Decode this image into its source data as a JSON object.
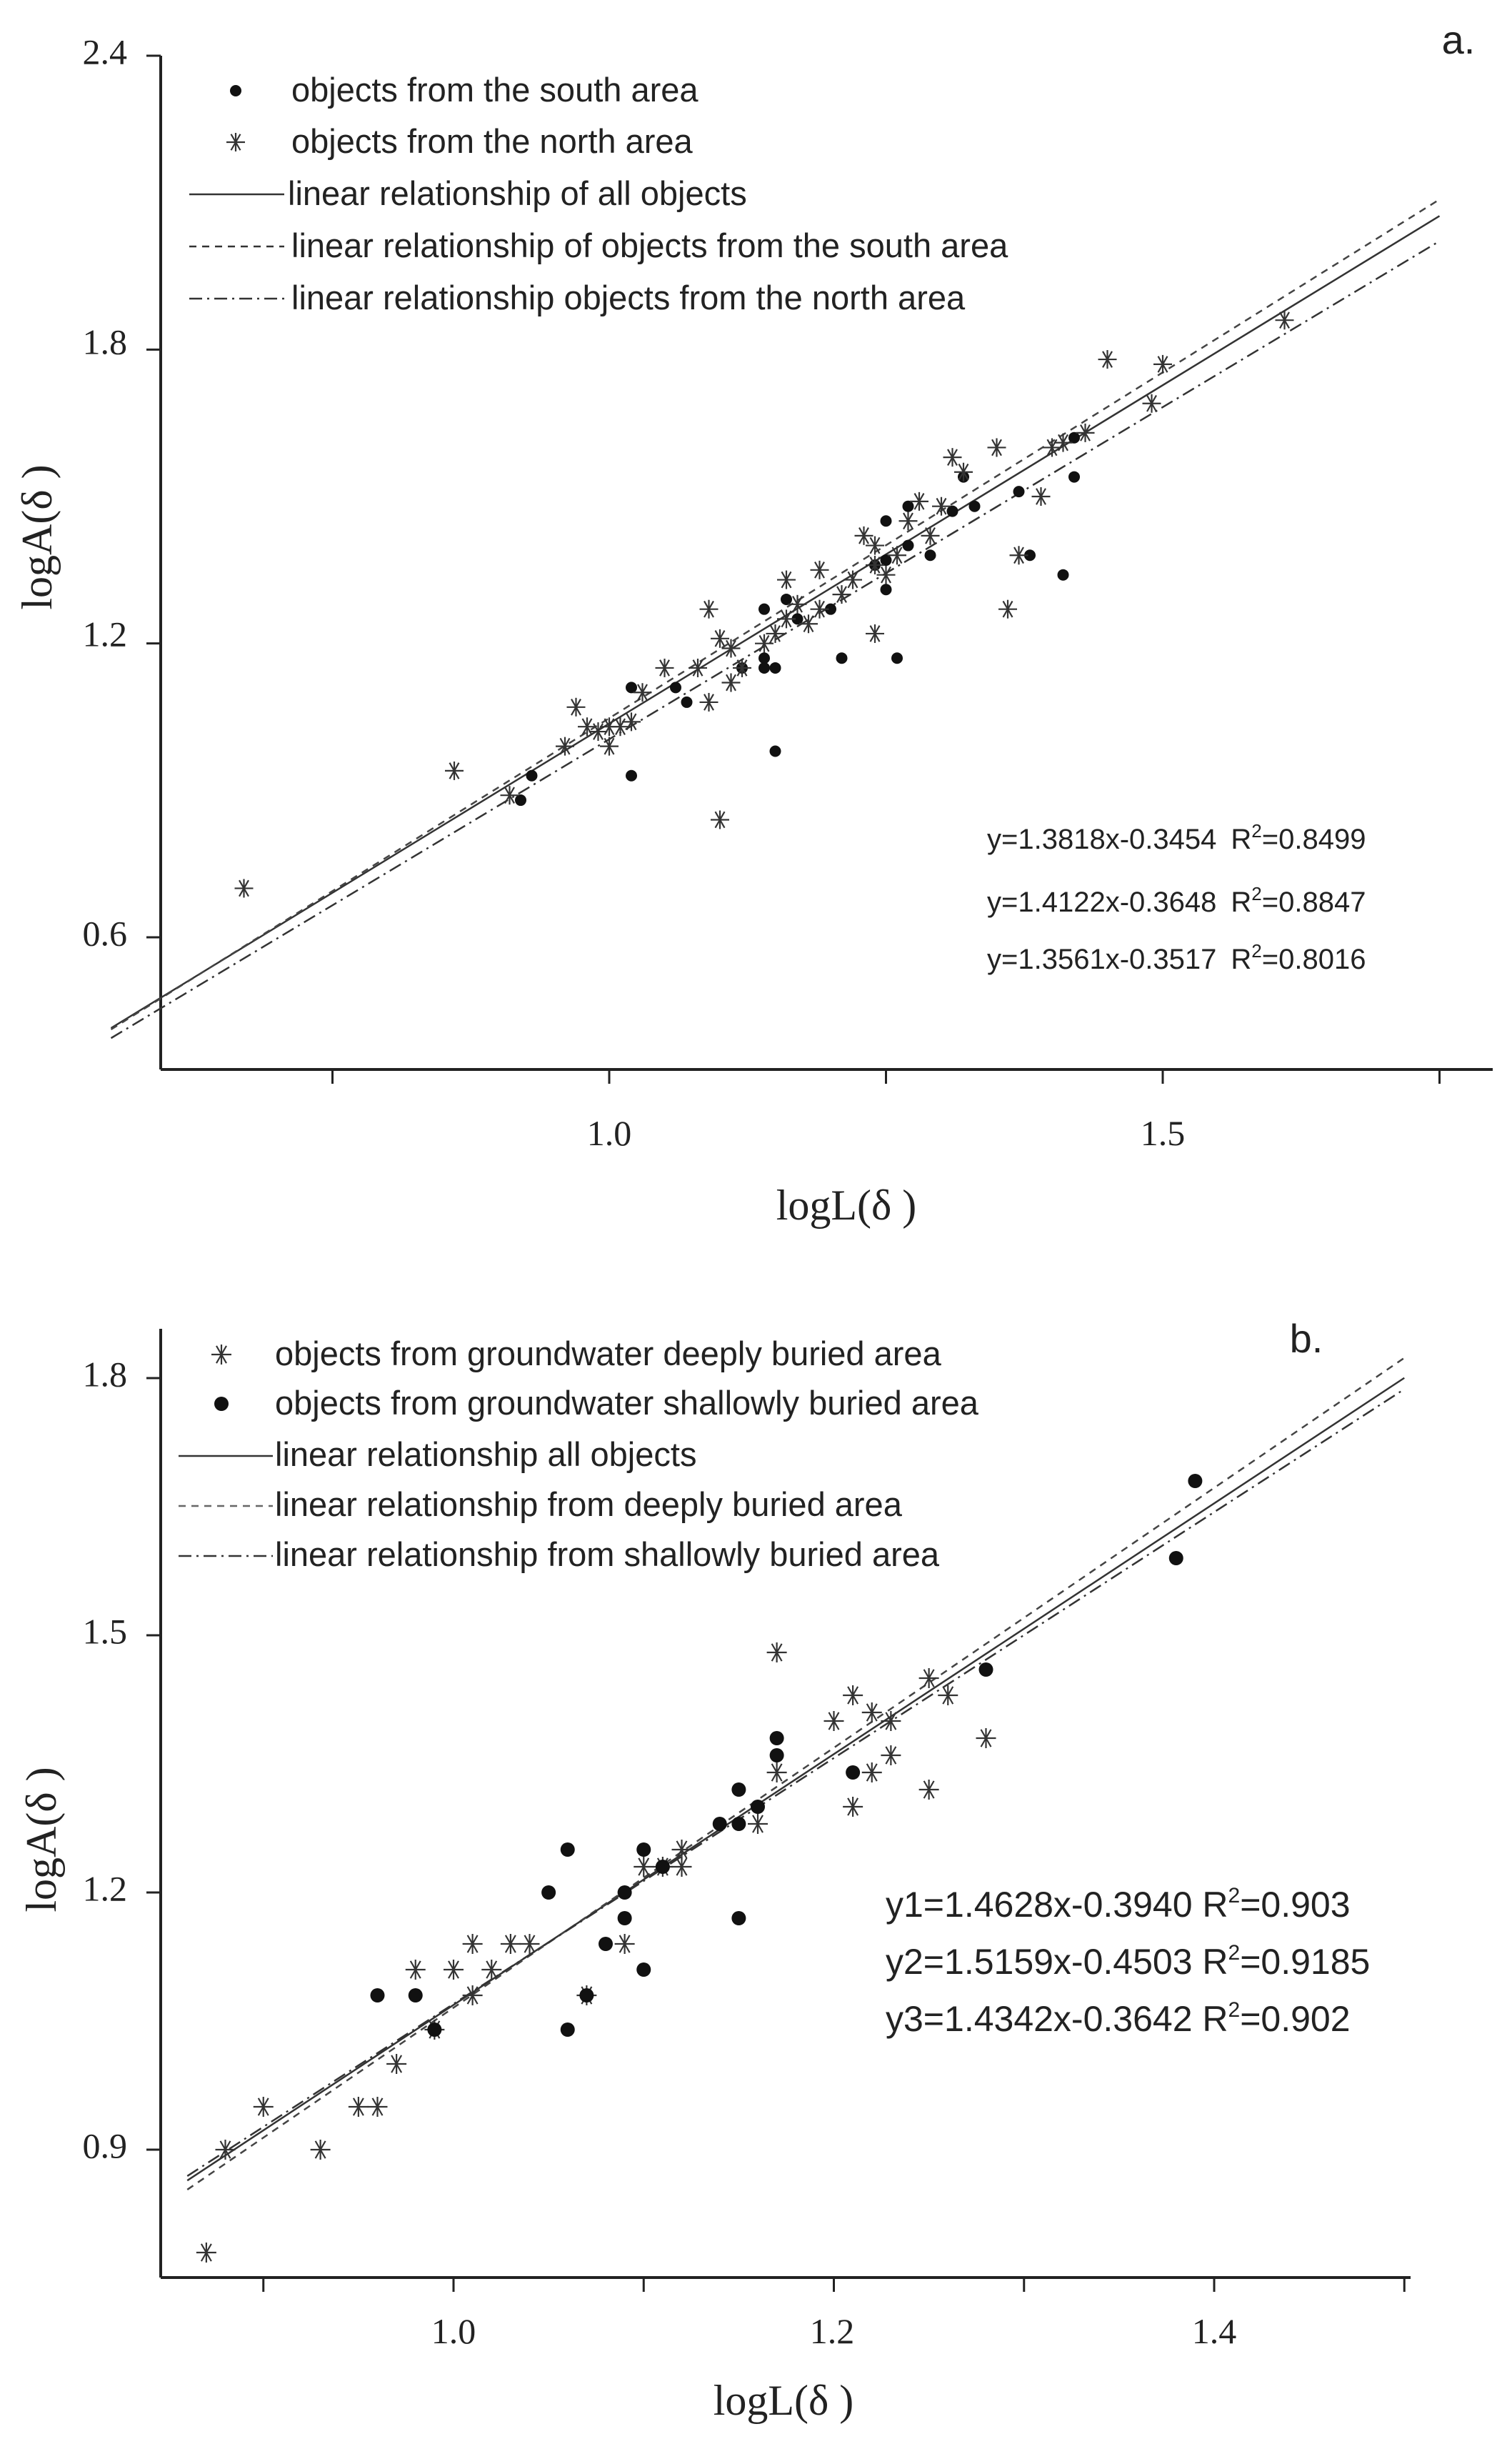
{
  "chart_data": [
    {
      "type": "scatter",
      "panel_label": "a.",
      "xlabel": "logL(δ )",
      "ylabel": "logA(δ )",
      "xlim": [
        0.55,
        1.75
      ],
      "ylim": [
        0.3,
        2.4
      ],
      "xticks": [
        "1.0",
        "1.5"
      ],
      "yticks": [
        "0.6",
        "1.2",
        "1.8",
        "2.4"
      ],
      "legend_position": "top-left",
      "series": [
        {
          "name": "objects from the south area",
          "marker": "dot",
          "points": [
            [
              0.92,
              0.88
            ],
            [
              0.93,
              0.93
            ],
            [
              1.02,
              1.11
            ],
            [
              1.02,
              0.93
            ],
            [
              1.06,
              1.11
            ],
            [
              1.07,
              1.08
            ],
            [
              1.12,
              1.15
            ],
            [
              1.14,
              1.15
            ],
            [
              1.14,
              1.17
            ],
            [
              1.14,
              1.27
            ],
            [
              1.15,
              0.98
            ],
            [
              1.15,
              1.15
            ],
            [
              1.16,
              1.29
            ],
            [
              1.17,
              1.25
            ],
            [
              1.2,
              1.27
            ],
            [
              1.21,
              1.17
            ],
            [
              1.24,
              1.36
            ],
            [
              1.25,
              1.31
            ],
            [
              1.25,
              1.45
            ],
            [
              1.25,
              1.37
            ],
            [
              1.26,
              1.17
            ],
            [
              1.27,
              1.48
            ],
            [
              1.27,
              1.4
            ],
            [
              1.29,
              1.38
            ],
            [
              1.31,
              1.47
            ],
            [
              1.32,
              1.54
            ],
            [
              1.33,
              1.48
            ],
            [
              1.37,
              1.51
            ],
            [
              1.38,
              1.38
            ],
            [
              1.41,
              1.34
            ],
            [
              1.42,
              1.54
            ],
            [
              1.42,
              1.62
            ]
          ]
        },
        {
          "name": "objects from the north area",
          "marker": "star",
          "points": [
            [
              0.67,
              0.7
            ],
            [
              0.86,
              0.94
            ],
            [
              0.91,
              0.89
            ],
            [
              0.96,
              0.99
            ],
            [
              0.97,
              1.07
            ],
            [
              0.98,
              1.03
            ],
            [
              0.99,
              1.02
            ],
            [
              1.0,
              0.99
            ],
            [
              1.0,
              1.03
            ],
            [
              1.01,
              1.03
            ],
            [
              1.02,
              1.04
            ],
            [
              1.03,
              1.1
            ],
            [
              1.05,
              1.15
            ],
            [
              1.08,
              1.15
            ],
            [
              1.09,
              1.08
            ],
            [
              1.09,
              1.27
            ],
            [
              1.1,
              1.21
            ],
            [
              1.1,
              0.84
            ],
            [
              1.11,
              1.19
            ],
            [
              1.11,
              1.12
            ],
            [
              1.12,
              1.15
            ],
            [
              1.14,
              1.2
            ],
            [
              1.15,
              1.22
            ],
            [
              1.16,
              1.25
            ],
            [
              1.16,
              1.33
            ],
            [
              1.17,
              1.28
            ],
            [
              1.18,
              1.24
            ],
            [
              1.19,
              1.35
            ],
            [
              1.19,
              1.27
            ],
            [
              1.21,
              1.3
            ],
            [
              1.22,
              1.33
            ],
            [
              1.23,
              1.42
            ],
            [
              1.24,
              1.4
            ],
            [
              1.24,
              1.22
            ],
            [
              1.24,
              1.36
            ],
            [
              1.25,
              1.34
            ],
            [
              1.26,
              1.38
            ],
            [
              1.27,
              1.45
            ],
            [
              1.28,
              1.49
            ],
            [
              1.29,
              1.42
            ],
            [
              1.3,
              1.48
            ],
            [
              1.31,
              1.58
            ],
            [
              1.32,
              1.55
            ],
            [
              1.35,
              1.6
            ],
            [
              1.36,
              1.27
            ],
            [
              1.37,
              1.38
            ],
            [
              1.39,
              1.5
            ],
            [
              1.4,
              1.6
            ],
            [
              1.41,
              1.61
            ],
            [
              1.43,
              1.63
            ],
            [
              1.45,
              1.78
            ],
            [
              1.49,
              1.69
            ],
            [
              1.5,
              1.77
            ],
            [
              1.61,
              1.86
            ]
          ]
        },
        {
          "name": "linear relationship of all objects",
          "line_style": "solid",
          "slope": 1.3818,
          "intercept": -0.3454
        },
        {
          "name": "linear relationship of objects from the south area",
          "line_style": "dashed",
          "slope": 1.4122,
          "intercept": -0.3648
        },
        {
          "name": "linear relationship objects from the north area",
          "line_style": "dashdot",
          "slope": 1.3561,
          "intercept": -0.3517
        }
      ],
      "annotations": [
        {
          "equation": "y=1.3818x-0.3454",
          "r2_label": "R",
          "r2_sup": "2",
          "r2_value": "=0.8499"
        },
        {
          "equation": "y=1.4122x-0.3648",
          "r2_label": "R",
          "r2_sup": "2",
          "r2_value": "=0.8847"
        },
        {
          "equation": "y=1.3561x-0.3517",
          "r2_label": "R",
          "r2_sup": "2",
          "r2_value": "=0.8016"
        }
      ]
    },
    {
      "type": "scatter",
      "panel_label": "b.",
      "xlabel": "logL(δ )",
      "ylabel": "logA(δ )",
      "xlim": [
        0.86,
        1.5
      ],
      "ylim": [
        0.76,
        1.85
      ],
      "xticks": [
        "1.0",
        "1.2",
        "1.4"
      ],
      "yticks": [
        "0.9",
        "1.2",
        "1.5",
        "1.8"
      ],
      "legend_position": "top-left",
      "series": [
        {
          "name": "objects from groundwater deeply buried area",
          "marker": "star",
          "points": [
            [
              0.87,
              0.78
            ],
            [
              0.88,
              0.9
            ],
            [
              0.9,
              0.95
            ],
            [
              0.93,
              0.9
            ],
            [
              0.95,
              0.95
            ],
            [
              0.96,
              0.95
            ],
            [
              0.97,
              1.0
            ],
            [
              0.98,
              1.11
            ],
            [
              0.99,
              1.04
            ],
            [
              1.0,
              1.11
            ],
            [
              1.01,
              1.14
            ],
            [
              1.01,
              1.08
            ],
            [
              1.02,
              1.11
            ],
            [
              1.03,
              1.14
            ],
            [
              1.04,
              1.14
            ],
            [
              1.07,
              1.08
            ],
            [
              1.09,
              1.14
            ],
            [
              1.1,
              1.23
            ],
            [
              1.11,
              1.23
            ],
            [
              1.12,
              1.23
            ],
            [
              1.12,
              1.25
            ],
            [
              1.16,
              1.28
            ],
            [
              1.17,
              1.48
            ],
            [
              1.17,
              1.34
            ],
            [
              1.2,
              1.4
            ],
            [
              1.21,
              1.43
            ],
            [
              1.21,
              1.3
            ],
            [
              1.22,
              1.41
            ],
            [
              1.22,
              1.34
            ],
            [
              1.23,
              1.4
            ],
            [
              1.23,
              1.36
            ],
            [
              1.25,
              1.32
            ],
            [
              1.25,
              1.45
            ],
            [
              1.26,
              1.43
            ],
            [
              1.28,
              1.38
            ]
          ]
        },
        {
          "name": "objects from groundwater shallowly buried area",
          "marker": "dot",
          "points": [
            [
              0.96,
              1.08
            ],
            [
              0.98,
              1.08
            ],
            [
              0.99,
              1.04
            ],
            [
              1.05,
              1.2
            ],
            [
              1.06,
              1.04
            ],
            [
              1.06,
              1.25
            ],
            [
              1.07,
              1.08
            ],
            [
              1.08,
              1.14
            ],
            [
              1.09,
              1.17
            ],
            [
              1.09,
              1.2
            ],
            [
              1.1,
              1.11
            ],
            [
              1.1,
              1.25
            ],
            [
              1.11,
              1.23
            ],
            [
              1.14,
              1.28
            ],
            [
              1.15,
              1.28
            ],
            [
              1.15,
              1.17
            ],
            [
              1.15,
              1.32
            ],
            [
              1.16,
              1.3
            ],
            [
              1.17,
              1.38
            ],
            [
              1.17,
              1.36
            ],
            [
              1.21,
              1.34
            ],
            [
              1.28,
              1.46
            ],
            [
              1.38,
              1.59
            ],
            [
              1.39,
              1.68
            ]
          ]
        },
        {
          "name": "linear relationship all objects",
          "line_style": "solid",
          "slope": 1.4628,
          "intercept": -0.394
        },
        {
          "name": "linear relationship from deeply buried area",
          "line_style": "dashed",
          "slope": 1.5159,
          "intercept": -0.4503
        },
        {
          "name": "linear relationship from shallowly buried area",
          "line_style": "dashdot",
          "slope": 1.4342,
          "intercept": -0.3642
        }
      ],
      "annotations": [
        {
          "equation": "y1=1.4628x-0.3940 ",
          "r2_label": "R",
          "r2_sup": "2",
          "r2_value": "=0.903"
        },
        {
          "equation": "y2=1.5159x-0.4503 ",
          "r2_label": "R",
          "r2_sup": "2",
          "r2_value": "=0.9185"
        },
        {
          "equation": "y3=1.4342x-0.3642 ",
          "r2_label": "R",
          "r2_sup": "2",
          "r2_value": "=0.902"
        }
      ]
    }
  ]
}
